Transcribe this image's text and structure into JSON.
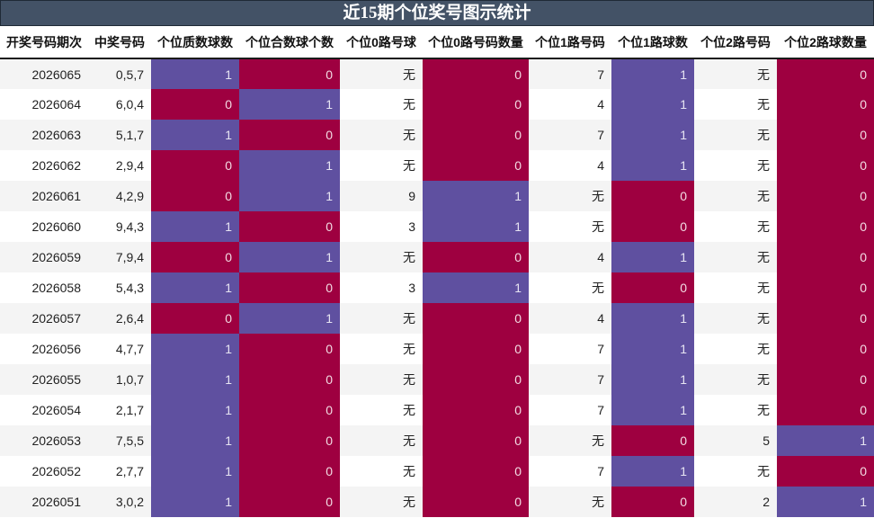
{
  "title": "近15期个位奖号图示统计",
  "colors": {
    "header_bg": "#435266",
    "one": "#5f50a0",
    "zero": "#9e0040",
    "row_alt": "#f4f4f4"
  },
  "columns": [
    "开奖号码期次",
    "中奖号码",
    "个位质数球数",
    "个位合数球个数",
    "个位0路号球",
    "个位0路号码数量",
    "个位1路号码",
    "个位1路球数",
    "个位2路号码",
    "个位2路球数量"
  ],
  "rows": [
    [
      "2026065",
      "0,5,7",
      "1",
      "0",
      "无",
      "0",
      "7",
      "1",
      "无",
      "0"
    ],
    [
      "2026064",
      "6,0,4",
      "0",
      "1",
      "无",
      "0",
      "4",
      "1",
      "无",
      "0"
    ],
    [
      "2026063",
      "5,1,7",
      "1",
      "0",
      "无",
      "0",
      "7",
      "1",
      "无",
      "0"
    ],
    [
      "2026062",
      "2,9,4",
      "0",
      "1",
      "无",
      "0",
      "4",
      "1",
      "无",
      "0"
    ],
    [
      "2026061",
      "4,2,9",
      "0",
      "1",
      "9",
      "1",
      "无",
      "0",
      "无",
      "0"
    ],
    [
      "2026060",
      "9,4,3",
      "1",
      "0",
      "3",
      "1",
      "无",
      "0",
      "无",
      "0"
    ],
    [
      "2026059",
      "7,9,4",
      "0",
      "1",
      "无",
      "0",
      "4",
      "1",
      "无",
      "0"
    ],
    [
      "2026058",
      "5,4,3",
      "1",
      "0",
      "3",
      "1",
      "无",
      "0",
      "无",
      "0"
    ],
    [
      "2026057",
      "2,6,4",
      "0",
      "1",
      "无",
      "0",
      "4",
      "1",
      "无",
      "0"
    ],
    [
      "2026056",
      "4,7,7",
      "1",
      "0",
      "无",
      "0",
      "7",
      "1",
      "无",
      "0"
    ],
    [
      "2026055",
      "1,0,7",
      "1",
      "0",
      "无",
      "0",
      "7",
      "1",
      "无",
      "0"
    ],
    [
      "2026054",
      "2,1,7",
      "1",
      "0",
      "无",
      "0",
      "7",
      "1",
      "无",
      "0"
    ],
    [
      "2026053",
      "7,5,5",
      "1",
      "0",
      "无",
      "0",
      "无",
      "0",
      "5",
      "1"
    ],
    [
      "2026052",
      "2,7,7",
      "1",
      "0",
      "无",
      "0",
      "7",
      "1",
      "无",
      "0"
    ],
    [
      "2026051",
      "3,0,2",
      "1",
      "0",
      "无",
      "0",
      "无",
      "0",
      "2",
      "1"
    ]
  ]
}
